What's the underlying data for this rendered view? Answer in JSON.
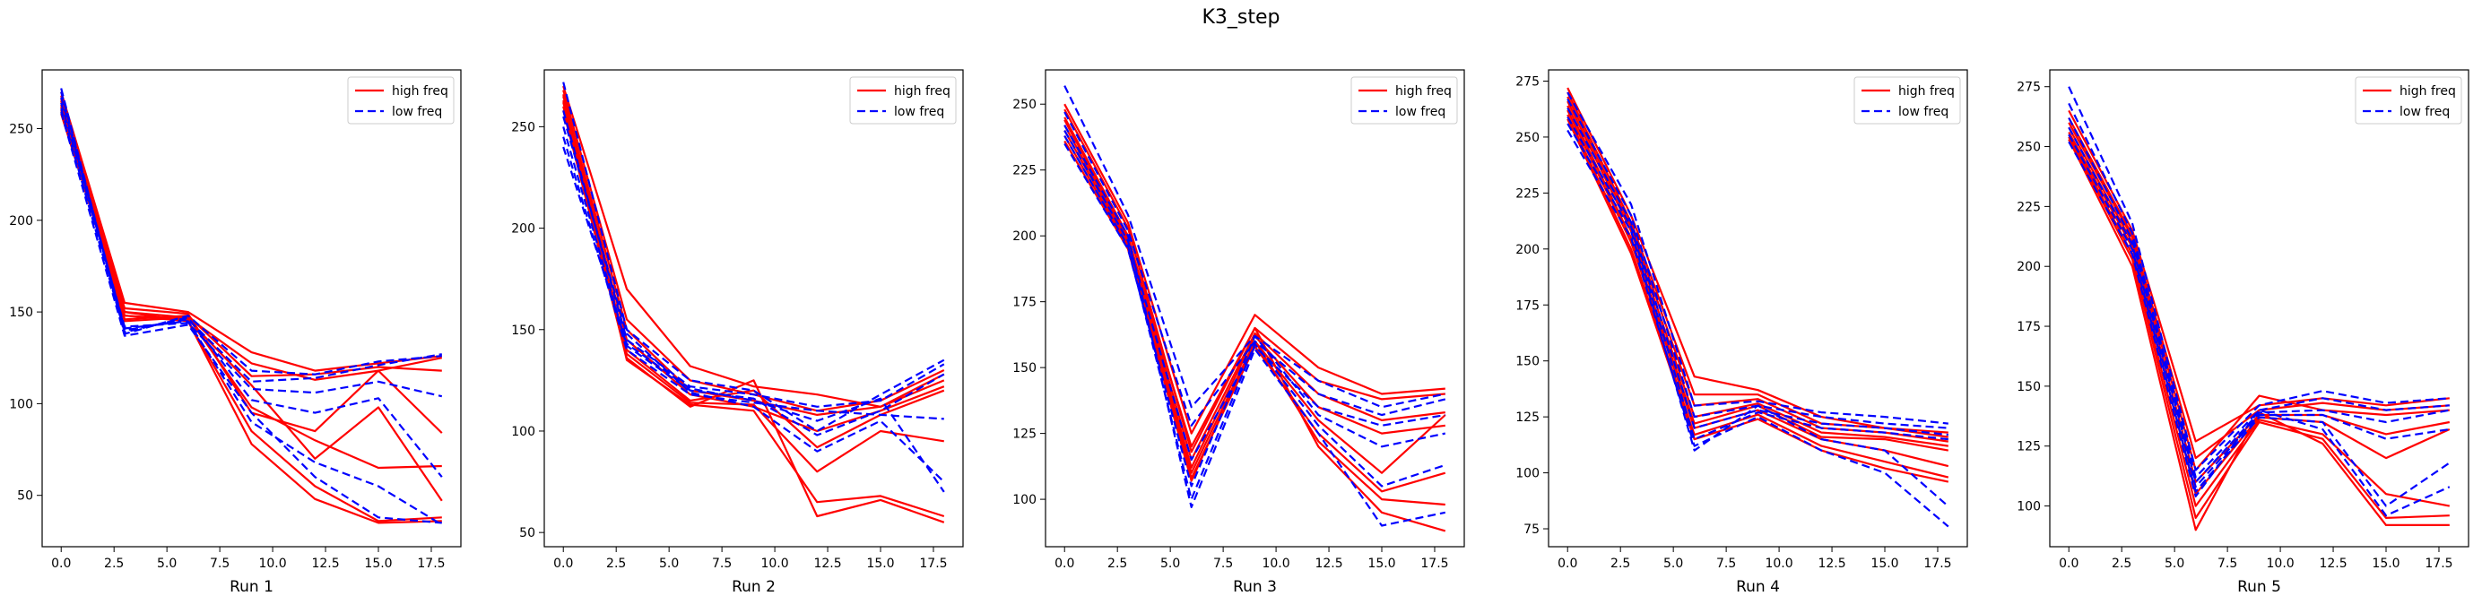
{
  "figure_title": "K3_step",
  "colors": {
    "high": "#ff0000",
    "low": "#0000ff",
    "axis": "#000000",
    "background": "#ffffff"
  },
  "chart_data": [
    {
      "type": "line",
      "xlabel": "Run 1",
      "x": [
        0,
        3,
        6,
        9,
        12,
        15,
        18
      ],
      "xlim": [
        -0.9,
        18.9
      ],
      "xticks": [
        0.0,
        2.5,
        5.0,
        7.5,
        10.0,
        12.5,
        15.0,
        17.5
      ],
      "ylim": [
        22,
        282
      ],
      "yticks": [
        50,
        100,
        150,
        200,
        250
      ],
      "legend": {
        "position": "top-right",
        "entries": [
          "high freq",
          "low freq"
        ]
      },
      "grid": false,
      "series": [
        {
          "group": "high",
          "values": [
            270,
            155,
            150,
            128,
            118,
            122,
            126
          ]
        },
        {
          "group": "high",
          "values": [
            265,
            150,
            147,
            122,
            113,
            118,
            125
          ]
        },
        {
          "group": "high",
          "values": [
            262,
            146,
            148,
            115,
            116,
            120,
            118
          ]
        },
        {
          "group": "high",
          "values": [
            268,
            148,
            146,
            110,
            70,
            98,
            47
          ]
        },
        {
          "group": "high",
          "values": [
            260,
            145,
            147,
            98,
            80,
            65,
            66
          ]
        },
        {
          "group": "high",
          "values": [
            258,
            148,
            145,
            85,
            55,
            36,
            38
          ]
        },
        {
          "group": "high",
          "values": [
            263,
            150,
            145,
            78,
            48,
            35,
            36
          ]
        },
        {
          "group": "high",
          "values": [
            266,
            152,
            149,
            95,
            85,
            118,
            84
          ]
        },
        {
          "group": "low",
          "values": [
            272,
            138,
            148,
            118,
            116,
            123,
            126
          ]
        },
        {
          "group": "low",
          "values": [
            270,
            140,
            146,
            112,
            114,
            121,
            127
          ]
        },
        {
          "group": "low",
          "values": [
            264,
            142,
            144,
            108,
            106,
            112,
            104
          ]
        },
        {
          "group": "low",
          "values": [
            261,
            139,
            147,
            102,
            95,
            103,
            60
          ]
        },
        {
          "group": "low",
          "values": [
            267,
            141,
            145,
            90,
            68,
            55,
            34
          ]
        },
        {
          "group": "low",
          "values": [
            259,
            137,
            143,
            95,
            60,
            38,
            35
          ]
        }
      ]
    },
    {
      "type": "line",
      "xlabel": "Run 2",
      "x": [
        0,
        3,
        6,
        9,
        12,
        15,
        18
      ],
      "xlim": [
        -0.9,
        18.9
      ],
      "xticks": [
        0.0,
        2.5,
        5.0,
        7.5,
        10.0,
        12.5,
        15.0,
        17.5
      ],
      "ylim": [
        43,
        278
      ],
      "yticks": [
        50,
        100,
        150,
        200,
        250
      ],
      "legend": {
        "position": "top-right",
        "entries": [
          "high freq",
          "low freq"
        ]
      },
      "grid": false,
      "series": [
        {
          "group": "high",
          "values": [
            270,
            170,
            132,
            122,
            118,
            112,
            128
          ]
        },
        {
          "group": "high",
          "values": [
            268,
            155,
            125,
            118,
            110,
            115,
            130
          ]
        },
        {
          "group": "high",
          "values": [
            265,
            150,
            120,
            115,
            108,
            112,
            125
          ]
        },
        {
          "group": "high",
          "values": [
            263,
            145,
            118,
            112,
            100,
            110,
            122
          ]
        },
        {
          "group": "high",
          "values": [
            262,
            140,
            115,
            120,
            92,
            108,
            120
          ]
        },
        {
          "group": "high",
          "values": [
            260,
            138,
            114,
            113,
            80,
            100,
            95
          ]
        },
        {
          "group": "high",
          "values": [
            266,
            135,
            113,
            110,
            65,
            68,
            58
          ]
        },
        {
          "group": "high",
          "values": [
            258,
            136,
            112,
            125,
            58,
            66,
            55
          ]
        },
        {
          "group": "low",
          "values": [
            272,
            150,
            125,
            120,
            100,
            118,
            135
          ]
        },
        {
          "group": "low",
          "values": [
            258,
            145,
            122,
            118,
            112,
            115,
            133
          ]
        },
        {
          "group": "low",
          "values": [
            250,
            142,
            120,
            116,
            98,
            110,
            128
          ]
        },
        {
          "group": "low",
          "values": [
            245,
            140,
            118,
            114,
            110,
            108,
            106
          ]
        },
        {
          "group": "low",
          "values": [
            255,
            148,
            119,
            112,
            90,
            105,
            75
          ]
        },
        {
          "group": "low",
          "values": [
            240,
            143,
            121,
            115,
            105,
            116,
            70
          ]
        }
      ]
    },
    {
      "type": "line",
      "xlabel": "Run 3",
      "x": [
        0,
        3,
        6,
        9,
        12,
        15,
        18
      ],
      "xlim": [
        -0.9,
        18.9
      ],
      "xticks": [
        0.0,
        2.5,
        5.0,
        7.5,
        10.0,
        12.5,
        15.0,
        17.5
      ],
      "ylim": [
        82,
        263
      ],
      "yticks": [
        100,
        125,
        150,
        175,
        200,
        225,
        250
      ],
      "legend": {
        "position": "top-right",
        "entries": [
          "high freq",
          "low freq"
        ]
      },
      "grid": false,
      "series": [
        {
          "group": "high",
          "values": [
            250,
            205,
            125,
            170,
            150,
            140,
            142
          ]
        },
        {
          "group": "high",
          "values": [
            248,
            203,
            118,
            165,
            145,
            138,
            140
          ]
        },
        {
          "group": "high",
          "values": [
            245,
            200,
            115,
            163,
            140,
            130,
            133
          ]
        },
        {
          "group": "high",
          "values": [
            242,
            198,
            112,
            162,
            135,
            125,
            128
          ]
        },
        {
          "group": "high",
          "values": [
            240,
            197,
            110,
            160,
            130,
            110,
            132
          ]
        },
        {
          "group": "high",
          "values": [
            238,
            196,
            108,
            158,
            125,
            103,
            110
          ]
        },
        {
          "group": "high",
          "values": [
            236,
            195,
            107,
            160,
            122,
            100,
            98
          ]
        },
        {
          "group": "high",
          "values": [
            244,
            199,
            120,
            165,
            120,
            95,
            88
          ]
        },
        {
          "group": "low",
          "values": [
            257,
            208,
            135,
            162,
            145,
            135,
            140
          ]
        },
        {
          "group": "low",
          "values": [
            247,
            202,
            128,
            160,
            140,
            132,
            138
          ]
        },
        {
          "group": "low",
          "values": [
            240,
            198,
            115,
            158,
            135,
            128,
            132
          ]
        },
        {
          "group": "low",
          "values": [
            235,
            195,
            105,
            162,
            132,
            120,
            125
          ]
        },
        {
          "group": "low",
          "values": [
            238,
            196,
            100,
            159,
            128,
            105,
            113
          ]
        },
        {
          "group": "low",
          "values": [
            242,
            200,
            97,
            157,
            125,
            90,
            95
          ]
        }
      ]
    },
    {
      "type": "line",
      "xlabel": "Run 4",
      "x": [
        0,
        3,
        6,
        9,
        12,
        15,
        18
      ],
      "xlim": [
        -0.9,
        18.9
      ],
      "xticks": [
        0.0,
        2.5,
        5.0,
        7.5,
        10.0,
        12.5,
        15.0,
        17.5
      ],
      "ylim": [
        67,
        280
      ],
      "yticks": [
        75,
        100,
        125,
        150,
        175,
        200,
        225,
        250,
        275
      ],
      "legend": {
        "position": "top-right",
        "entries": [
          "high freq",
          "low freq"
        ]
      },
      "grid": false,
      "series": [
        {
          "group": "high",
          "values": [
            272,
            215,
            143,
            137,
            125,
            120,
            118
          ]
        },
        {
          "group": "high",
          "values": [
            270,
            212,
            135,
            135,
            122,
            120,
            116
          ]
        },
        {
          "group": "high",
          "values": [
            268,
            210,
            130,
            133,
            120,
            118,
            114
          ]
        },
        {
          "group": "high",
          "values": [
            266,
            208,
            125,
            131,
            118,
            116,
            112
          ]
        },
        {
          "group": "high",
          "values": [
            264,
            205,
            122,
            130,
            116,
            115,
            110
          ]
        },
        {
          "group": "high",
          "values": [
            262,
            203,
            120,
            128,
            115,
            110,
            103
          ]
        },
        {
          "group": "high",
          "values": [
            260,
            200,
            117,
            126,
            112,
            105,
            98
          ]
        },
        {
          "group": "high",
          "values": [
            258,
            198,
            115,
            124,
            110,
            102,
            96
          ]
        },
        {
          "group": "low",
          "values": [
            270,
            220,
            130,
            132,
            127,
            125,
            122
          ]
        },
        {
          "group": "low",
          "values": [
            267,
            215,
            125,
            130,
            125,
            122,
            120
          ]
        },
        {
          "group": "low",
          "values": [
            263,
            212,
            120,
            128,
            122,
            120,
            117
          ]
        },
        {
          "group": "low",
          "values": [
            259,
            210,
            115,
            127,
            120,
            118,
            115
          ]
        },
        {
          "group": "low",
          "values": [
            256,
            208,
            110,
            130,
            115,
            110,
            85
          ]
        },
        {
          "group": "low",
          "values": [
            253,
            205,
            112,
            125,
            110,
            100,
            76
          ]
        }
      ]
    },
    {
      "type": "line",
      "xlabel": "Run 5",
      "x": [
        0,
        3,
        6,
        9,
        12,
        15,
        18
      ],
      "xlim": [
        -0.9,
        18.9
      ],
      "xticks": [
        0.0,
        2.5,
        5.0,
        7.5,
        10.0,
        12.5,
        15.0,
        17.5
      ],
      "ylim": [
        83,
        282
      ],
      "yticks": [
        100,
        125,
        150,
        175,
        200,
        225,
        250,
        275
      ],
      "legend": {
        "position": "top-right",
        "entries": [
          "high freq",
          "low freq"
        ]
      },
      "grid": false,
      "series": [
        {
          "group": "high",
          "values": [
            265,
            215,
            127,
            142,
            145,
            142,
            145
          ]
        },
        {
          "group": "high",
          "values": [
            262,
            213,
            120,
            140,
            143,
            140,
            142
          ]
        },
        {
          "group": "high",
          "values": [
            260,
            212,
            115,
            146,
            140,
            138,
            140
          ]
        },
        {
          "group": "high",
          "values": [
            258,
            210,
            110,
            138,
            138,
            130,
            135
          ]
        },
        {
          "group": "high",
          "values": [
            256,
            208,
            105,
            137,
            135,
            120,
            132
          ]
        },
        {
          "group": "high",
          "values": [
            255,
            205,
            100,
            136,
            130,
            105,
            100
          ]
        },
        {
          "group": "high",
          "values": [
            254,
            203,
            95,
            135,
            128,
            95,
            96
          ]
        },
        {
          "group": "high",
          "values": [
            253,
            200,
            90,
            139,
            126,
            92,
            92
          ]
        },
        {
          "group": "low",
          "values": [
            275,
            218,
            115,
            142,
            148,
            143,
            145
          ]
        },
        {
          "group": "low",
          "values": [
            268,
            214,
            112,
            140,
            145,
            140,
            142
          ]
        },
        {
          "group": "low",
          "values": [
            262,
            211,
            110,
            139,
            140,
            135,
            140
          ]
        },
        {
          "group": "low",
          "values": [
            258,
            209,
            108,
            138,
            138,
            128,
            132
          ]
        },
        {
          "group": "low",
          "values": [
            255,
            207,
            106,
            137,
            135,
            100,
            118
          ]
        },
        {
          "group": "low",
          "values": [
            252,
            205,
            104,
            140,
            132,
            96,
            108
          ]
        }
      ]
    }
  ]
}
